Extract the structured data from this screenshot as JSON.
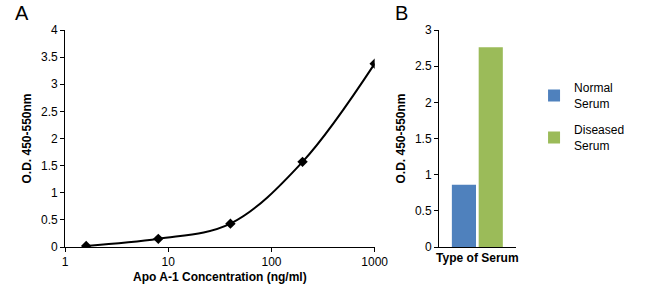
{
  "chart_data": [
    {
      "type": "line",
      "title": "A",
      "x": [
        1.6,
        8,
        40,
        200,
        1000
      ],
      "values": [
        0.02,
        0.15,
        0.43,
        1.57,
        3.38
      ],
      "color": "#000000",
      "marker": "diamond",
      "line_style": "solid",
      "log": "x",
      "xlabel": "Apo A-1 Concentration (ng/ml)",
      "ylabel": "O.D. 450-550nm",
      "xlim": [
        1,
        1000
      ],
      "xticks": [
        1,
        10,
        100,
        1000
      ],
      "ylim": [
        0,
        4
      ],
      "yticks": [
        0,
        0.5,
        1,
        1.5,
        2,
        2.5,
        3,
        3.5,
        4
      ],
      "grid": false
    },
    {
      "type": "bar",
      "title": "B",
      "categories": [
        null
      ],
      "series": [
        {
          "name": "Normal Serum",
          "color": "#4f81bd",
          "values": [
            0.86
          ]
        },
        {
          "name": "Diseased Serum",
          "color": "#9bbb59",
          "values": [
            2.76
          ]
        }
      ],
      "xlabel": "Type of Serum",
      "ylabel": "O.D. 450-550nm",
      "ylim": [
        0,
        3
      ],
      "yticks": [
        0,
        0.5,
        1,
        1.5,
        2,
        2.5,
        3
      ],
      "legend": "right",
      "grid": false
    }
  ]
}
